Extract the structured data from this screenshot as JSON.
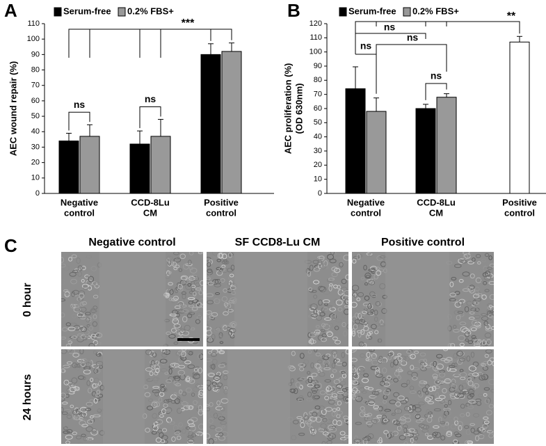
{
  "panels": {
    "a": {
      "letter": "A"
    },
    "b": {
      "letter": "B"
    },
    "c": {
      "letter": "C"
    }
  },
  "chart_data": [
    {
      "type": "bar",
      "panel": "A",
      "ylabel": "AEC  wound repair (%)",
      "ylim": [
        0,
        110
      ],
      "yticks": [
        "0",
        "10",
        "20",
        "30",
        "40",
        "50",
        "60",
        "70",
        "80",
        "90",
        "100",
        "110"
      ],
      "categories": [
        [
          "Negative",
          "control"
        ],
        [
          "CCD-8Lu",
          "CM"
        ],
        [
          "Positive",
          "control"
        ]
      ],
      "series": [
        {
          "name": "Serum-free",
          "color": "#000000",
          "values": [
            34,
            32,
            90
          ],
          "errors": [
            5,
            8.5,
            7
          ]
        },
        {
          "name": "0.2% FBS+",
          "color": "#999999",
          "values": [
            37,
            37,
            92
          ],
          "errors": [
            7.5,
            11,
            5.5
          ]
        }
      ],
      "legend": [
        "Serum-free",
        "0.2% FBS+"
      ],
      "annotations": [
        "ns",
        "ns",
        "***"
      ]
    },
    {
      "type": "bar",
      "panel": "B",
      "ylabel": [
        "AEC proliferation (%)",
        "(OD 630nm)"
      ],
      "ylim": [
        0,
        120
      ],
      "yticks": [
        "0",
        "10",
        "20",
        "30",
        "40",
        "50",
        "60",
        "70",
        "80",
        "90",
        "100",
        "110",
        "120"
      ],
      "categories": [
        [
          "Negative",
          "control"
        ],
        [
          "CCD-8Lu",
          "CM"
        ],
        [
          "Positive",
          "control"
        ]
      ],
      "series": [
        {
          "name": "Serum-free",
          "color": "#000000",
          "values": [
            74,
            60,
            null
          ],
          "errors": [
            15.5,
            3,
            null
          ]
        },
        {
          "name": "0.2% FBS+",
          "color": "#999999",
          "values": [
            58,
            68,
            null
          ],
          "errors": [
            9.5,
            2.5,
            null
          ]
        },
        {
          "name": "",
          "color": "#ffffff",
          "values": [
            null,
            null,
            107
          ],
          "errors": [
            null,
            null,
            4
          ]
        }
      ],
      "legend": [
        "Serum-free",
        "0.2% FBS+"
      ],
      "annotations": [
        "ns",
        "ns",
        "ns",
        "ns",
        "**"
      ]
    }
  ],
  "micrographs": {
    "columns": [
      "Negative control",
      "SF CCD8-Lu CM",
      "Positive control"
    ],
    "rows": [
      "0 hour",
      "24 hours"
    ]
  }
}
